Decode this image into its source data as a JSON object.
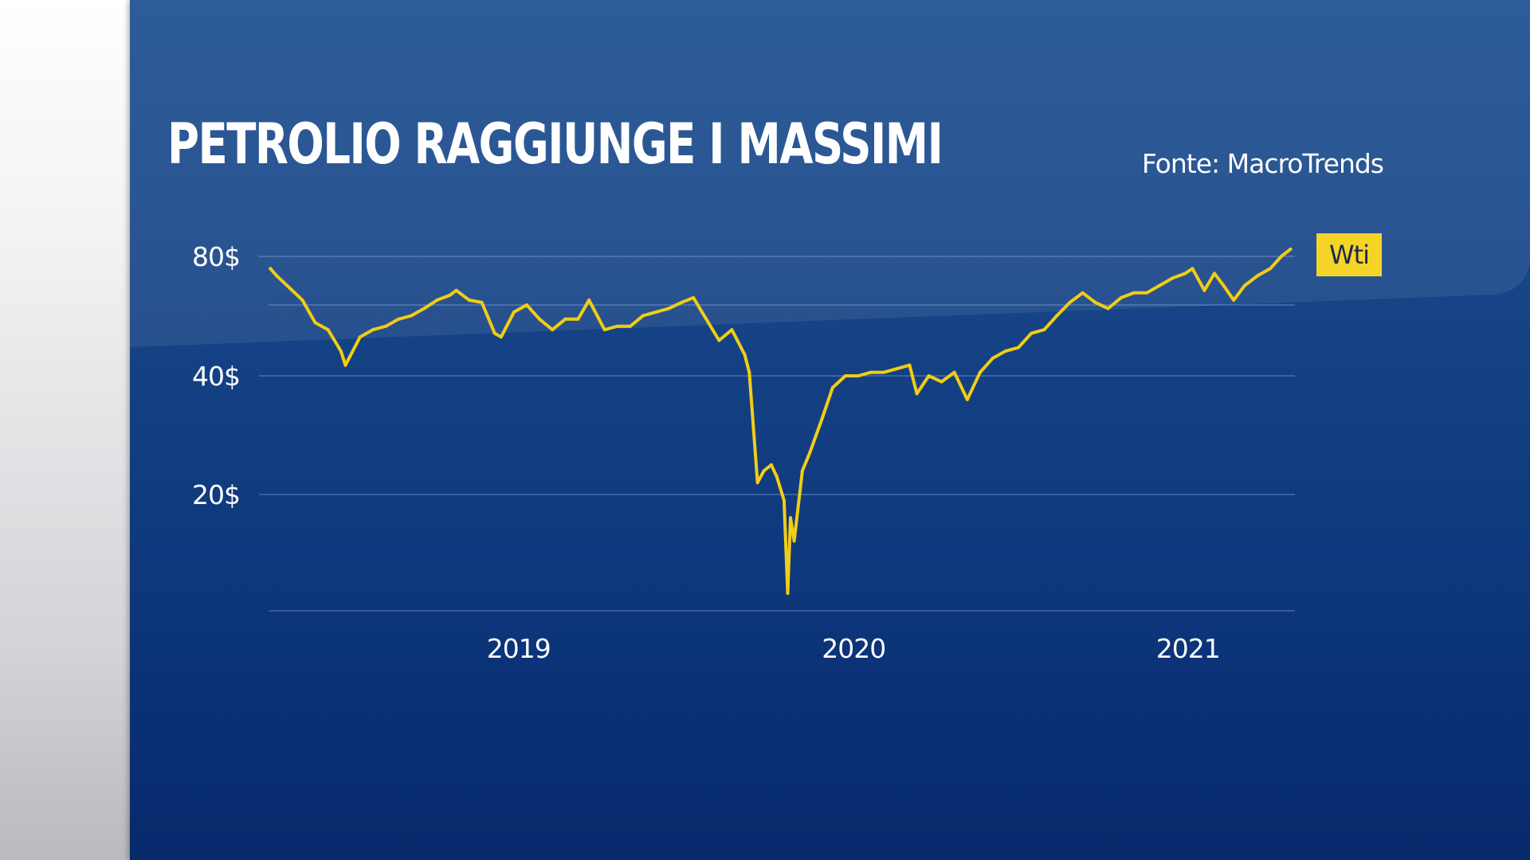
{
  "title": "PETROLIO RAGGIUNGE I MASSIMI",
  "source": "Fonte: MacroTrends",
  "colors": {
    "line": "#f2cd15",
    "legend_bg": "#f5d428",
    "background": "#103b80"
  },
  "chart_data": {
    "type": "line",
    "title": "PETROLIO RAGGIUNGE I MASSIMI",
    "xlabel": "",
    "ylabel": "",
    "ylim": [
      0,
      80
    ],
    "xlim": [
      "2018-10-01",
      "2021-10-25"
    ],
    "y_ticks": [
      "80$",
      "40$",
      "20$"
    ],
    "x_ticks": [
      "2019",
      "2020",
      "2021"
    ],
    "grid": true,
    "legend": "right",
    "series": [
      {
        "name": "Wti",
        "points": [
          [
            "2018-10-03",
            75
          ],
          [
            "2018-10-10",
            72
          ],
          [
            "2018-10-24",
            67
          ],
          [
            "2018-11-07",
            62
          ],
          [
            "2018-11-21",
            55
          ],
          [
            "2018-12-05",
            53
          ],
          [
            "2018-12-19",
            47
          ],
          [
            "2018-12-24",
            43
          ],
          [
            "2019-01-09",
            51
          ],
          [
            "2019-01-23",
            53
          ],
          [
            "2019-02-06",
            54
          ],
          [
            "2019-02-20",
            56
          ],
          [
            "2019-03-06",
            57
          ],
          [
            "2019-03-20",
            59
          ],
          [
            "2019-04-03",
            62
          ],
          [
            "2019-04-17",
            64
          ],
          [
            "2019-04-24",
            66
          ],
          [
            "2019-05-08",
            62
          ],
          [
            "2019-05-22",
            61
          ],
          [
            "2019-06-05",
            52
          ],
          [
            "2019-06-12",
            51
          ],
          [
            "2019-06-26",
            58
          ],
          [
            "2019-07-10",
            60
          ],
          [
            "2019-07-24",
            56
          ],
          [
            "2019-08-07",
            53
          ],
          [
            "2019-08-21",
            56
          ],
          [
            "2019-09-04",
            56
          ],
          [
            "2019-09-16",
            62
          ],
          [
            "2019-10-03",
            53
          ],
          [
            "2019-10-17",
            54
          ],
          [
            "2019-10-31",
            54
          ],
          [
            "2019-11-14",
            57
          ],
          [
            "2019-11-28",
            58
          ],
          [
            "2019-12-12",
            59
          ],
          [
            "2019-12-26",
            61
          ],
          [
            "2020-01-08",
            63
          ],
          [
            "2020-01-22",
            56
          ],
          [
            "2020-02-05",
            50
          ],
          [
            "2020-02-19",
            53
          ],
          [
            "2020-03-04",
            46
          ],
          [
            "2020-03-09",
            41
          ],
          [
            "2020-03-18",
            22
          ],
          [
            "2020-03-25",
            24
          ],
          [
            "2020-04-02",
            25
          ],
          [
            "2020-04-08",
            23
          ],
          [
            "2020-04-16",
            19
          ],
          [
            "2020-04-20",
            3
          ],
          [
            "2020-04-23",
            16
          ],
          [
            "2020-04-27",
            12
          ],
          [
            "2020-05-06",
            24
          ],
          [
            "2020-05-14",
            27
          ],
          [
            "2020-05-28",
            33
          ],
          [
            "2020-06-08",
            38
          ],
          [
            "2020-06-22",
            40
          ],
          [
            "2020-07-06",
            40
          ],
          [
            "2020-07-20",
            41
          ],
          [
            "2020-08-03",
            41
          ],
          [
            "2020-08-17",
            42
          ],
          [
            "2020-08-31",
            43
          ],
          [
            "2020-09-08",
            37
          ],
          [
            "2020-09-21",
            40
          ],
          [
            "2020-10-05",
            39
          ],
          [
            "2020-10-19",
            41
          ],
          [
            "2020-11-02",
            36
          ],
          [
            "2020-11-16",
            41
          ],
          [
            "2020-11-30",
            45
          ],
          [
            "2020-12-14",
            47
          ],
          [
            "2020-12-28",
            48
          ],
          [
            "2021-01-11",
            52
          ],
          [
            "2021-01-25",
            53
          ],
          [
            "2021-02-08",
            57
          ],
          [
            "2021-02-22",
            61
          ],
          [
            "2021-03-08",
            65
          ],
          [
            "2021-03-22",
            61
          ],
          [
            "2021-04-05",
            59
          ],
          [
            "2021-04-19",
            63
          ],
          [
            "2021-05-03",
            65
          ],
          [
            "2021-05-17",
            65
          ],
          [
            "2021-05-31",
            68
          ],
          [
            "2021-06-14",
            71
          ],
          [
            "2021-06-28",
            73
          ],
          [
            "2021-07-06",
            75
          ],
          [
            "2021-07-19",
            66
          ],
          [
            "2021-07-30",
            73
          ],
          [
            "2021-08-09",
            68
          ],
          [
            "2021-08-20",
            62
          ],
          [
            "2021-09-01",
            68
          ],
          [
            "2021-09-15",
            72
          ],
          [
            "2021-09-29",
            75
          ],
          [
            "2021-10-11",
            80
          ],
          [
            "2021-10-21",
            83
          ]
        ]
      }
    ]
  }
}
